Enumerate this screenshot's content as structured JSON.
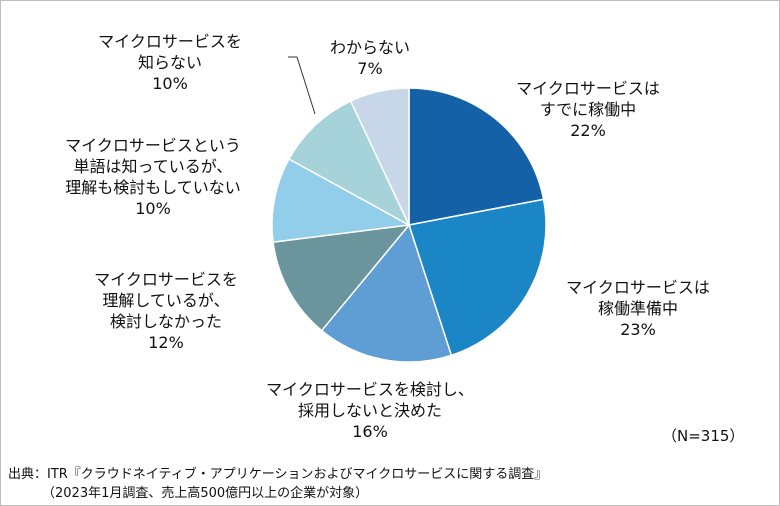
{
  "chart_data": {
    "type": "pie",
    "title": "",
    "n_note": "（N=315）",
    "slices": [
      {
        "name": "マイクロサービスは\nすでに稼働中",
        "value": 22,
        "label": "22%",
        "color": "#1461a8"
      },
      {
        "name": "マイクロサービスは\n稼働準備中",
        "value": 23,
        "label": "23%",
        "color": "#1b86c6"
      },
      {
        "name": "マイクロサービスを検討し、\n採用しないと決めた",
        "value": 16,
        "label": "16%",
        "color": "#5f9ed4"
      },
      {
        "name": "マイクロサービスを\n理解しているが、\n検討しなかった",
        "value": 12,
        "label": "12%",
        "color": "#6a959c"
      },
      {
        "name": "マイクロサービスという\n単語は知っているが、\n理解も検討もしていない",
        "value": 10,
        "label": "10%",
        "color": "#92cdea"
      },
      {
        "name": "マイクロサービスを\n知らない",
        "value": 10,
        "label": "10%",
        "color": "#a6d3da"
      },
      {
        "name": "わからない",
        "value": 7,
        "label": "7%",
        "color": "#c8d7e8"
      }
    ]
  },
  "source": {
    "line1": "出典：ITR『クラウドネイティブ・アプリケーションおよびマイクロサービスに関する調査』",
    "line2": "（2023年1月調査、売上高500億円以上の企業が対象）"
  }
}
